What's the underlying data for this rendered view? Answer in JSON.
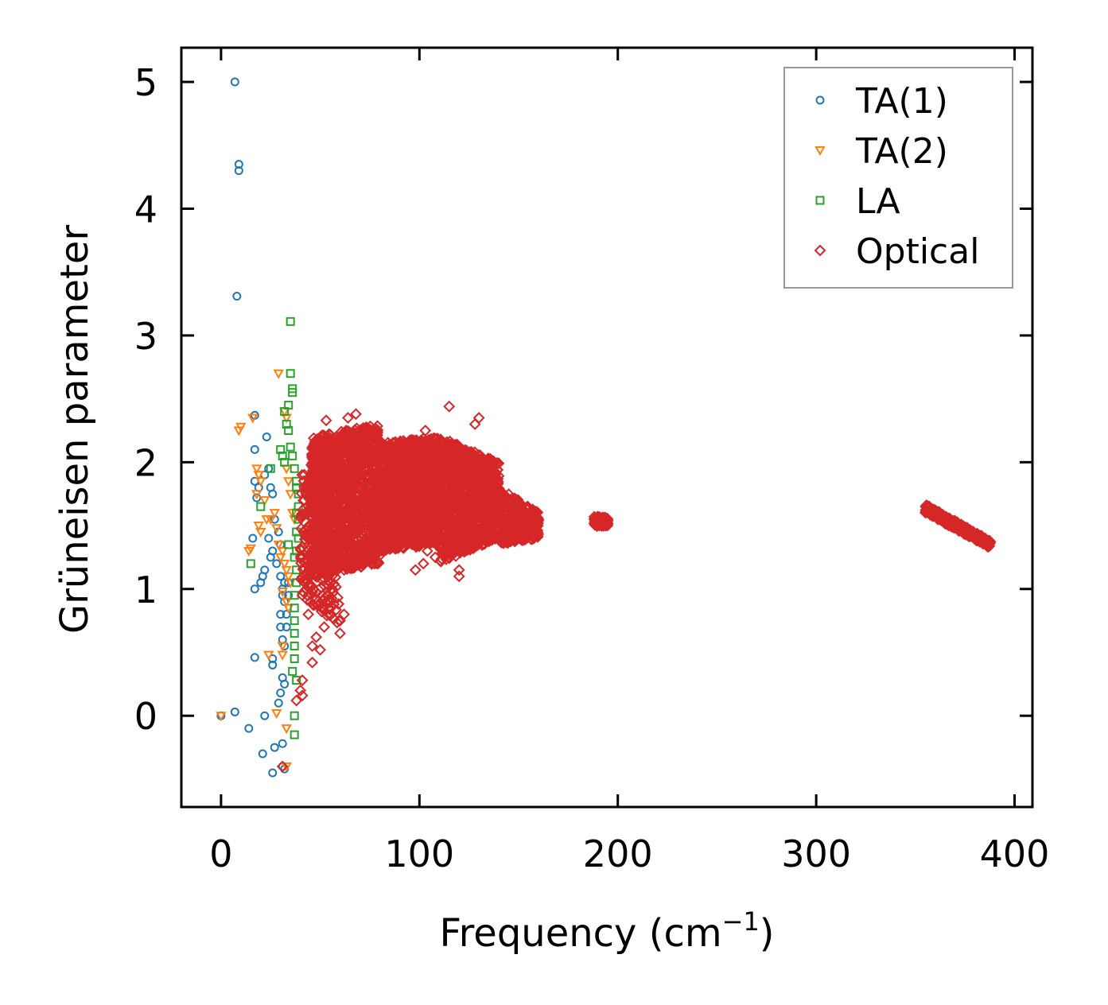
{
  "chart_data": {
    "type": "scatter",
    "xlabel": "Frequency (cm",
    "xlabel_sup": "−1",
    "xlabel_close": ")",
    "ylabel": "Grüneisen parameter",
    "xlim": [
      -20,
      409
    ],
    "ylim": [
      -0.72,
      5.27
    ],
    "xticks": [
      0,
      100,
      200,
      300,
      400
    ],
    "yticks": [
      0,
      1,
      2,
      3,
      4,
      5
    ],
    "legend_position": "top-right",
    "series": [
      {
        "name": "TA(1)",
        "marker": "circle",
        "color": "#1f77b4",
        "points": [
          [
            7,
            5.0
          ],
          [
            9,
            4.35
          ],
          [
            9,
            4.3
          ],
          [
            8,
            3.31
          ],
          [
            17,
            2.37
          ],
          [
            17,
            2.1
          ],
          [
            17,
            1.85
          ],
          [
            18,
            1.72
          ],
          [
            19,
            1.8
          ],
          [
            22,
            1.9
          ],
          [
            23,
            2.2
          ],
          [
            24,
            1.95
          ],
          [
            25,
            1.8
          ],
          [
            26,
            1.75
          ],
          [
            16,
            1.4
          ],
          [
            17,
            1.0
          ],
          [
            20,
            1.05
          ],
          [
            21,
            1.1
          ],
          [
            22,
            1.15
          ],
          [
            24,
            1.4
          ],
          [
            25,
            1.25
          ],
          [
            26,
            1.3
          ],
          [
            27,
            1.55
          ],
          [
            28,
            1.2
          ],
          [
            29,
            1.45
          ],
          [
            30,
            1.35
          ],
          [
            30,
            1.1
          ],
          [
            31,
            1.0
          ],
          [
            31,
            0.95
          ],
          [
            32,
            1.05
          ],
          [
            32,
            0.9
          ],
          [
            33,
            0.8
          ],
          [
            33,
            0.7
          ],
          [
            34,
            0.95
          ],
          [
            34,
            1.05
          ],
          [
            30,
            0.8
          ],
          [
            30,
            0.7
          ],
          [
            31,
            0.6
          ],
          [
            32,
            0.55
          ],
          [
            26,
            0.45
          ],
          [
            17,
            0.46
          ],
          [
            26,
            0.4
          ],
          [
            29,
            0.1
          ],
          [
            30,
            0.18
          ],
          [
            31,
            0.3
          ],
          [
            32,
            0.25
          ],
          [
            22,
            0.0
          ],
          [
            0,
            0.0
          ],
          [
            7,
            0.03
          ],
          [
            14,
            -0.1
          ],
          [
            21,
            -0.3
          ],
          [
            27,
            -0.25
          ],
          [
            31,
            -0.22
          ],
          [
            26,
            -0.45
          ],
          [
            31,
            -0.4
          ],
          [
            32,
            -0.42
          ]
        ]
      },
      {
        "name": "TA(2)",
        "marker": "triangle-down",
        "color": "#ff7f0e",
        "points": [
          [
            0,
            0.0
          ],
          [
            9,
            2.25
          ],
          [
            10,
            2.28
          ],
          [
            16,
            2.35
          ],
          [
            18,
            1.95
          ],
          [
            18,
            1.75
          ],
          [
            19,
            1.9
          ],
          [
            20,
            1.85
          ],
          [
            19,
            1.5
          ],
          [
            20,
            1.45
          ],
          [
            22,
            1.7
          ],
          [
            14,
            1.3
          ],
          [
            15,
            1.32
          ],
          [
            23,
            1.55
          ],
          [
            25,
            1.55
          ],
          [
            27,
            1.6
          ],
          [
            28,
            1.48
          ],
          [
            29,
            1.35
          ],
          [
            30,
            1.25
          ],
          [
            31,
            1.3
          ],
          [
            32,
            1.2
          ],
          [
            33,
            1.15
          ],
          [
            34,
            1.1
          ],
          [
            35,
            1.05
          ],
          [
            29,
            2.7
          ],
          [
            32,
            2.4
          ],
          [
            33,
            2.35
          ],
          [
            33,
            1.95
          ],
          [
            34,
            1.85
          ],
          [
            35,
            1.75
          ],
          [
            36,
            1.6
          ],
          [
            37,
            1.55
          ],
          [
            31,
            0.98
          ],
          [
            33,
            0.9
          ],
          [
            34,
            0.85
          ],
          [
            31,
            0.55
          ],
          [
            24,
            0.48
          ],
          [
            31,
            0.48
          ],
          [
            28,
            0.02
          ],
          [
            33,
            -0.1
          ],
          [
            33,
            -0.4
          ]
        ]
      },
      {
        "name": "LA",
        "marker": "square",
        "color": "#2ca02c",
        "points": [
          [
            35,
            3.11
          ],
          [
            35,
            2.7
          ],
          [
            36,
            2.58
          ],
          [
            36,
            2.55
          ],
          [
            34,
            2.45
          ],
          [
            32,
            2.4
          ],
          [
            33,
            2.3
          ],
          [
            34,
            2.25
          ],
          [
            30,
            2.1
          ],
          [
            31,
            2.05
          ],
          [
            32,
            2.0
          ],
          [
            35,
            2.12
          ],
          [
            36,
            2.05
          ],
          [
            37,
            1.95
          ],
          [
            38,
            1.85
          ],
          [
            38,
            1.8
          ],
          [
            39,
            1.75
          ],
          [
            39,
            1.65
          ],
          [
            38,
            1.6
          ],
          [
            39,
            1.55
          ],
          [
            38,
            1.45
          ],
          [
            39,
            1.4
          ],
          [
            38,
            1.3
          ],
          [
            37,
            1.25
          ],
          [
            38,
            1.15
          ],
          [
            38,
            1.05
          ],
          [
            37,
            0.95
          ],
          [
            37,
            0.85
          ],
          [
            37,
            0.75
          ],
          [
            37,
            0.65
          ],
          [
            37,
            0.55
          ],
          [
            37,
            0.45
          ],
          [
            36,
            0.35
          ],
          [
            38,
            0.28
          ],
          [
            37,
            0.0
          ],
          [
            37,
            -0.15
          ],
          [
            20,
            1.65
          ],
          [
            15,
            1.2
          ],
          [
            25,
            1.95
          ],
          [
            34,
            1.35
          ]
        ]
      },
      {
        "name": "Optical",
        "marker": "diamond",
        "color": "#d62728",
        "bands": [
          {
            "x": [
              40,
              60
            ],
            "y_lo": [
              0.95,
              0.7
            ],
            "y_hi": [
              1.9,
              2.1
            ],
            "n": 320
          },
          {
            "x": [
              45,
              80
            ],
            "y_lo": [
              1.1,
              1.2
            ],
            "y_hi": [
              2.2,
              2.3
            ],
            "n": 1400
          },
          {
            "x": [
              80,
              110
            ],
            "y_lo": [
              1.3,
              1.35
            ],
            "y_hi": [
              2.15,
              2.2
            ],
            "n": 1300
          },
          {
            "x": [
              110,
              140
            ],
            "y_lo": [
              1.2,
              1.4
            ],
            "y_hi": [
              2.2,
              2.0
            ],
            "n": 1100
          },
          {
            "x": [
              140,
              160
            ],
            "y_lo": [
              1.35,
              1.4
            ],
            "y_hi": [
              1.8,
              1.6
            ],
            "n": 300
          },
          {
            "x": [
              188,
              195
            ],
            "y_lo": [
              1.49,
              1.5
            ],
            "y_hi": [
              1.58,
              1.56
            ],
            "n": 80
          },
          {
            "x": [
              355,
              388
            ],
            "y_lo": [
              1.6,
              1.32
            ],
            "y_hi": [
              1.67,
              1.38
            ],
            "n": 260
          }
        ],
        "points": [
          [
            115,
            2.44
          ],
          [
            68,
            2.38
          ],
          [
            64,
            2.35
          ],
          [
            53,
            2.33
          ],
          [
            130,
            2.35
          ],
          [
            128,
            2.3
          ],
          [
            103,
            2.25
          ],
          [
            93,
            2.15
          ],
          [
            52,
            0.7
          ],
          [
            46,
            0.55
          ],
          [
            46,
            0.42
          ],
          [
            48,
            0.62
          ],
          [
            50,
            0.52
          ],
          [
            60,
            0.65
          ],
          [
            60,
            0.75
          ],
          [
            62,
            0.8
          ],
          [
            41,
            0.28
          ],
          [
            40,
            0.2
          ],
          [
            38,
            0.12
          ],
          [
            41,
            0.16
          ],
          [
            40,
            1.32
          ],
          [
            42,
            1.7
          ],
          [
            41,
            0.95
          ],
          [
            43,
            1.0
          ],
          [
            44,
            0.8
          ],
          [
            45,
            0.9
          ],
          [
            98,
            1.15
          ],
          [
            102,
            1.2
          ],
          [
            108,
            1.25
          ],
          [
            120,
            1.1
          ],
          [
            120,
            1.15
          ],
          [
            104,
            1.3
          ],
          [
            122,
            1.5
          ],
          [
            125,
            1.6
          ],
          [
            145,
            1.45
          ],
          [
            150,
            1.4
          ],
          [
            155,
            1.45
          ],
          [
            160,
            1.55
          ],
          [
            31,
            -0.4
          ]
        ]
      }
    ]
  }
}
